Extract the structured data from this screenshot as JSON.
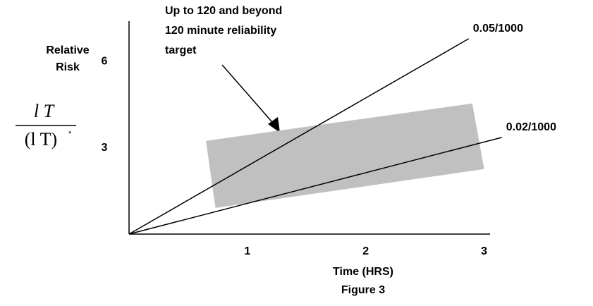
{
  "chart_data": {
    "type": "line",
    "x_label": "Time (HRS)",
    "caption": "Figure 3",
    "y_label": [
      "Relative",
      "Risk"
    ],
    "formula": {
      "numerator": "l  T",
      "denominator": "(l  T)",
      "superscript": "*"
    },
    "annotation": [
      "Up to 120 and beyond",
      "120 minute reliability",
      "target"
    ],
    "xlim": [
      0,
      3.05
    ],
    "ylim": [
      0,
      7.4
    ],
    "xticks": [
      1,
      2,
      3
    ],
    "yticks": [
      3,
      6
    ],
    "series": [
      {
        "name": "0.05/1000",
        "color": "#000000",
        "x": [
          0,
          2.87
        ],
        "values": [
          0,
          6.79
        ]
      },
      {
        "name": "0.02/1000",
        "color": "#000000",
        "x": [
          0,
          3.15
        ],
        "values": [
          0,
          3.36
        ]
      }
    ],
    "band": {
      "color": "#c0c0c0",
      "x": [
        0.65,
        2.9,
        3.0,
        0.73
      ],
      "y": [
        3.24,
        4.54,
        2.26,
        0.91
      ]
    }
  }
}
